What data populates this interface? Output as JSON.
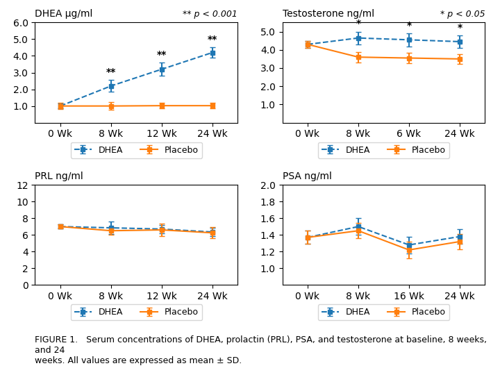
{
  "caption": "FIGURE 1.   Serum concentrations of DHEA, prolactin (PRL), PSA, and testosterone at baseline, 8 weeks, and 24\nweeks. All values are expressed as mean ± SD.",
  "chart_data": [
    {
      "type": "line",
      "title": "DHEA μg/ml",
      "categories": [
        "0 Wk",
        "8 Wk",
        "12 Wk",
        "24 Wk"
      ],
      "ylim": [
        0,
        6.0
      ],
      "yticks": [
        {
          "value": 1.0,
          "label": "1.0"
        },
        {
          "value": 2.0,
          "label": "2.0"
        },
        {
          "value": 3.0,
          "label": "3.0"
        },
        {
          "value": 4.0,
          "label": "4.0"
        },
        {
          "value": 5.0,
          "label": "5.0"
        },
        {
          "value": 6.0,
          "label": "6.0"
        }
      ],
      "series": [
        {
          "name": "DHEA",
          "values": [
            1.0,
            2.2,
            3.2,
            4.2
          ],
          "errors": [
            0.15,
            0.35,
            0.4,
            0.3
          ],
          "marker": "square",
          "line_style": "dashed"
        },
        {
          "name": "Placebo",
          "values": [
            1.0,
            1.0,
            1.02,
            1.02
          ],
          "errors": [
            0.18,
            0.22,
            0.18,
            0.18
          ],
          "marker": "square",
          "line_style": "solid"
        }
      ],
      "annotations": [
        {
          "text": "**",
          "category": "8 Wk",
          "series": "DHEA"
        },
        {
          "text": "**",
          "category": "12 Wk",
          "series": "DHEA"
        },
        {
          "text": "**",
          "category": "24 Wk",
          "series": "DHEA"
        },
        {
          "text": "** p < 0.001"
        }
      ],
      "legend": "below",
      "grid": false
    },
    {
      "type": "line",
      "title": "Testosterone ng/ml",
      "categories": [
        "0 Wk",
        "8 Wk",
        "6 Wk",
        "24 Wk"
      ],
      "ylim": [
        0,
        5.5
      ],
      "yticks": [
        {
          "value": 1.0,
          "label": "1.0"
        },
        {
          "value": 2.0,
          "label": "2.0"
        },
        {
          "value": 3.0,
          "label": "3.0"
        },
        {
          "value": 4.0,
          "label": "4.0"
        },
        {
          "value": 5.0,
          "label": "5.0"
        }
      ],
      "series": [
        {
          "name": "DHEA",
          "values": [
            4.3,
            4.65,
            4.55,
            4.45
          ],
          "errors": [
            0.2,
            0.35,
            0.35,
            0.35
          ],
          "marker": "square",
          "line_style": "dashed"
        },
        {
          "name": "Placebo",
          "values": [
            4.3,
            3.6,
            3.55,
            3.5
          ],
          "errors": [
            0.2,
            0.28,
            0.3,
            0.28
          ],
          "marker": "square",
          "line_style": "solid"
        }
      ],
      "annotations": [
        {
          "text": "*",
          "category": "8 Wk",
          "series": "DHEA"
        },
        {
          "text": "*",
          "category": "6 Wk",
          "series": "DHEA"
        },
        {
          "text": "*",
          "category": "24 Wk",
          "series": "DHEA"
        },
        {
          "text": "* p < 0.05"
        }
      ],
      "legend": "below",
      "grid": false
    },
    {
      "type": "line",
      "title": "PRL ng/ml",
      "categories": [
        "0 Wk",
        "8 Wk",
        "12 Wk",
        "24 Wk"
      ],
      "ylim": [
        0,
        12
      ],
      "yticks": [
        0,
        2,
        4,
        6,
        8,
        10,
        12
      ],
      "series": [
        {
          "name": "DHEA",
          "values": [
            7.0,
            6.85,
            6.7,
            6.35
          ],
          "errors": [
            0.25,
            0.75,
            0.5,
            0.5
          ],
          "marker": "square",
          "line_style": "dashed"
        },
        {
          "name": "Placebo",
          "values": [
            7.0,
            6.5,
            6.6,
            6.25
          ],
          "errors": [
            0.25,
            0.45,
            0.75,
            0.65
          ],
          "marker": "square",
          "line_style": "solid"
        }
      ],
      "legend": "below",
      "grid": false
    },
    {
      "type": "line",
      "title": "PSA ng/ml",
      "categories": [
        "0 Wk",
        "8 Wk",
        "16 Wk",
        "24 Wk"
      ],
      "ylim": [
        0.8,
        2.0
      ],
      "yticks": [
        {
          "value": 1.0,
          "label": "1.0"
        },
        {
          "value": 1.2,
          "label": "1.2"
        },
        {
          "value": 1.4,
          "label": "1.4"
        },
        {
          "value": 1.6,
          "label": "1.6"
        },
        {
          "value": 1.8,
          "label": "1.8"
        },
        {
          "value": 2.0,
          "label": "2.0"
        }
      ],
      "series": [
        {
          "name": "DHEA",
          "values": [
            1.37,
            1.5,
            1.28,
            1.38
          ],
          "errors": [
            0.08,
            0.1,
            0.1,
            0.09
          ],
          "marker": "square",
          "line_style": "dashed"
        },
        {
          "name": "Placebo",
          "values": [
            1.37,
            1.45,
            1.22,
            1.32
          ],
          "errors": [
            0.08,
            0.09,
            0.1,
            0.09
          ],
          "marker": "square",
          "line_style": "solid"
        }
      ],
      "legend": "below",
      "grid": false
    }
  ]
}
